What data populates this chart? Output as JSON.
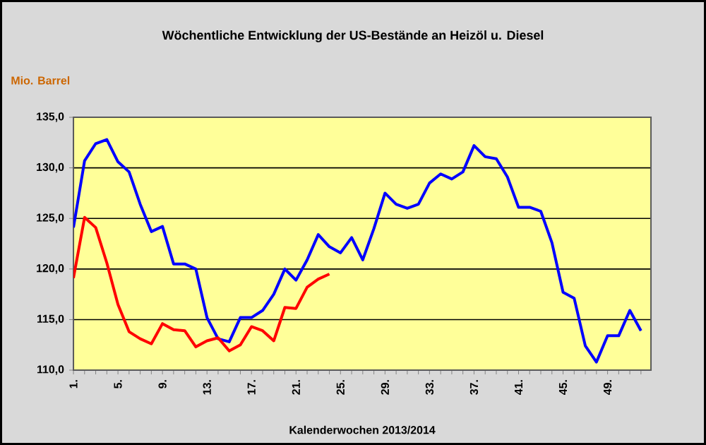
{
  "chart_data": {
    "type": "line",
    "title": "Wöchentliche Entwicklung der US-Bestände an Heizöl u. Diesel",
    "ylabel": "Mio. Barrel",
    "xlabel": "Kalenderwochen 2013/2014",
    "categories": [
      "1.",
      null,
      null,
      null,
      "5.",
      null,
      null,
      null,
      "9.",
      null,
      null,
      null,
      "13.",
      null,
      null,
      null,
      "17.",
      null,
      null,
      null,
      "21.",
      null,
      null,
      null,
      "25.",
      null,
      null,
      null,
      "29.",
      null,
      null,
      null,
      "33.",
      null,
      null,
      null,
      "37.",
      null,
      null,
      null,
      "41.",
      null,
      null,
      null,
      "45.",
      null,
      null,
      null,
      "49.",
      null,
      null,
      null
    ],
    "series": [
      {
        "color": "#0000ff",
        "values": [
          124.1,
          130.7,
          132.4,
          132.8,
          130.6,
          129.6,
          126.4,
          123.7,
          124.2,
          120.5,
          120.5,
          120.0,
          115.2,
          113.1,
          112.8,
          115.2,
          115.2,
          115.9,
          117.5,
          120.0,
          118.9,
          120.9,
          123.4,
          122.2,
          121.6,
          123.1,
          120.9,
          124.0,
          127.5,
          126.4,
          126.0,
          126.4,
          128.5,
          129.4,
          128.9,
          129.6,
          132.2,
          131.1,
          130.9,
          129.1,
          126.1,
          126.1,
          125.7,
          122.6,
          117.7,
          117.1,
          112.4,
          110.8,
          113.4,
          113.4,
          115.9,
          113.9
        ]
      },
      {
        "color": "#ff0000",
        "values": [
          119.1,
          125.1,
          124.1,
          120.6,
          116.5,
          113.8,
          113.1,
          112.6,
          114.6,
          114.0,
          113.9,
          112.3,
          112.9,
          113.2,
          111.9,
          112.5,
          114.3,
          113.9,
          112.9,
          116.2,
          116.1,
          118.2,
          119.0,
          119.5,
          null,
          null,
          null,
          null,
          null,
          null,
          null,
          null,
          null,
          null,
          null,
          null,
          null,
          null,
          null,
          null,
          null,
          null,
          null,
          null,
          null,
          null,
          null,
          null,
          null,
          null,
          null,
          null
        ]
      }
    ],
    "ylim": [
      110,
      135
    ],
    "yticks": [
      {
        "value": 110,
        "label": "110,0"
      },
      {
        "value": 115,
        "label": "115,0"
      },
      {
        "value": 120,
        "label": "120,0"
      },
      {
        "value": 125,
        "label": "125,0"
      },
      {
        "value": 130,
        "label": "130,0"
      },
      {
        "value": 135,
        "label": "135,0"
      }
    ],
    "grid": "y",
    "marker": "none",
    "line_style": "solid"
  }
}
